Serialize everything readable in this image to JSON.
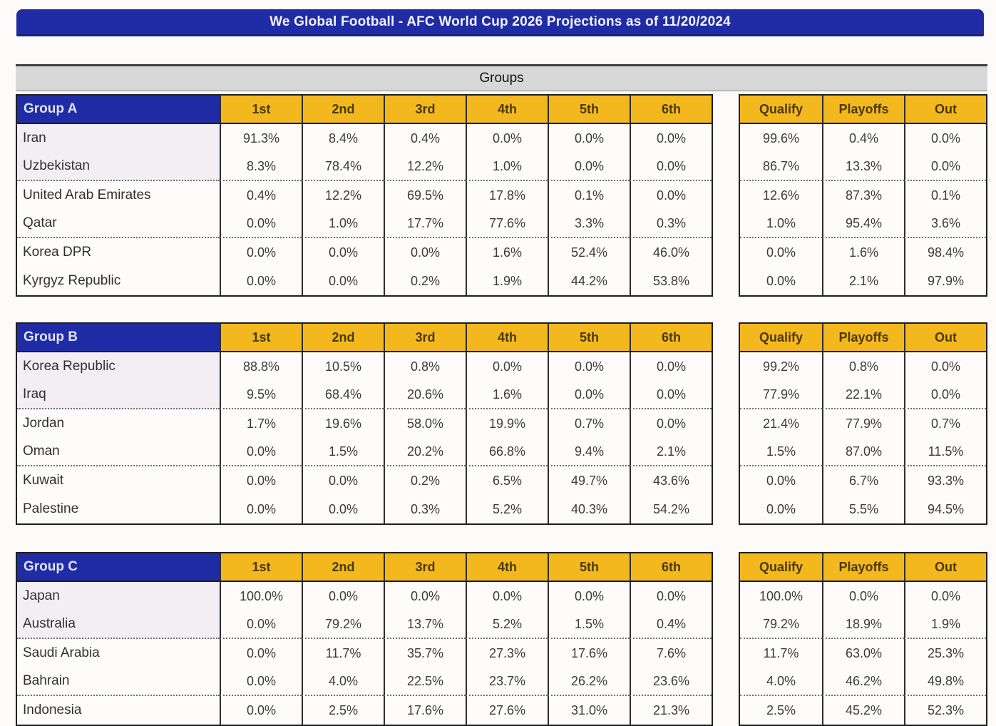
{
  "chart_data": {
    "type": "table",
    "title": "We Global Football - AFC World Cup 2026 Projections as of 11/20/2024",
    "section": "Groups",
    "position_columns": [
      "1st",
      "2nd",
      "3rd",
      "4th",
      "5th",
      "6th"
    ],
    "outcome_columns": [
      "Qualify",
      "Playoffs",
      "Out"
    ],
    "groups": [
      {
        "name": "Group A",
        "teams": [
          {
            "team": "Iran",
            "positions": [
              "91.3%",
              "8.4%",
              "0.4%",
              "0.0%",
              "0.0%",
              "0.0%"
            ],
            "outcomes": [
              "99.6%",
              "0.4%",
              "0.0%"
            ]
          },
          {
            "team": "Uzbekistan",
            "positions": [
              "8.3%",
              "78.4%",
              "12.2%",
              "1.0%",
              "0.0%",
              "0.0%"
            ],
            "outcomes": [
              "86.7%",
              "13.3%",
              "0.0%"
            ]
          },
          {
            "team": "United Arab Emirates",
            "positions": [
              "0.4%",
              "12.2%",
              "69.5%",
              "17.8%",
              "0.1%",
              "0.0%"
            ],
            "outcomes": [
              "12.6%",
              "87.3%",
              "0.1%"
            ]
          },
          {
            "team": "Qatar",
            "positions": [
              "0.0%",
              "1.0%",
              "17.7%",
              "77.6%",
              "3.3%",
              "0.3%"
            ],
            "outcomes": [
              "1.0%",
              "95.4%",
              "3.6%"
            ]
          },
          {
            "team": "Korea DPR",
            "positions": [
              "0.0%",
              "0.0%",
              "0.0%",
              "1.6%",
              "52.4%",
              "46.0%"
            ],
            "outcomes": [
              "0.0%",
              "1.6%",
              "98.4%"
            ]
          },
          {
            "team": "Kyrgyz Republic",
            "positions": [
              "0.0%",
              "0.0%",
              "0.2%",
              "1.9%",
              "44.2%",
              "53.8%"
            ],
            "outcomes": [
              "0.0%",
              "2.1%",
              "97.9%"
            ]
          }
        ]
      },
      {
        "name": "Group B",
        "teams": [
          {
            "team": "Korea Republic",
            "positions": [
              "88.8%",
              "10.5%",
              "0.8%",
              "0.0%",
              "0.0%",
              "0.0%"
            ],
            "outcomes": [
              "99.2%",
              "0.8%",
              "0.0%"
            ]
          },
          {
            "team": "Iraq",
            "positions": [
              "9.5%",
              "68.4%",
              "20.6%",
              "1.6%",
              "0.0%",
              "0.0%"
            ],
            "outcomes": [
              "77.9%",
              "22.1%",
              "0.0%"
            ]
          },
          {
            "team": "Jordan",
            "positions": [
              "1.7%",
              "19.6%",
              "58.0%",
              "19.9%",
              "0.7%",
              "0.0%"
            ],
            "outcomes": [
              "21.4%",
              "77.9%",
              "0.7%"
            ]
          },
          {
            "team": "Oman",
            "positions": [
              "0.0%",
              "1.5%",
              "20.2%",
              "66.8%",
              "9.4%",
              "2.1%"
            ],
            "outcomes": [
              "1.5%",
              "87.0%",
              "11.5%"
            ]
          },
          {
            "team": "Kuwait",
            "positions": [
              "0.0%",
              "0.0%",
              "0.2%",
              "6.5%",
              "49.7%",
              "43.6%"
            ],
            "outcomes": [
              "0.0%",
              "6.7%",
              "93.3%"
            ]
          },
          {
            "team": "Palestine",
            "positions": [
              "0.0%",
              "0.0%",
              "0.3%",
              "5.2%",
              "40.3%",
              "54.2%"
            ],
            "outcomes": [
              "0.0%",
              "5.5%",
              "94.5%"
            ]
          }
        ]
      },
      {
        "name": "Group C",
        "teams": [
          {
            "team": "Japan",
            "positions": [
              "100.0%",
              "0.0%",
              "0.0%",
              "0.0%",
              "0.0%",
              "0.0%"
            ],
            "outcomes": [
              "100.0%",
              "0.0%",
              "0.0%"
            ]
          },
          {
            "team": "Australia",
            "positions": [
              "0.0%",
              "79.2%",
              "13.7%",
              "5.2%",
              "1.5%",
              "0.4%"
            ],
            "outcomes": [
              "79.2%",
              "18.9%",
              "1.9%"
            ]
          },
          {
            "team": "Saudi Arabia",
            "positions": [
              "0.0%",
              "11.7%",
              "35.7%",
              "27.3%",
              "17.6%",
              "7.6%"
            ],
            "outcomes": [
              "11.7%",
              "63.0%",
              "25.3%"
            ]
          },
          {
            "team": "Bahrain",
            "positions": [
              "0.0%",
              "4.0%",
              "22.5%",
              "23.7%",
              "26.2%",
              "23.6%"
            ],
            "outcomes": [
              "4.0%",
              "46.2%",
              "49.8%"
            ]
          },
          {
            "team": "Indonesia",
            "positions": [
              "0.0%",
              "2.5%",
              "17.6%",
              "27.6%",
              "31.0%",
              "21.3%"
            ],
            "outcomes": [
              "2.5%",
              "45.2%",
              "52.3%"
            ]
          }
        ]
      }
    ],
    "layout": {
      "qualify_zone_rows": 2,
      "dotted_separators_after_rows": [
        2,
        4
      ]
    },
    "colors": {
      "banner_navy": "#202CA6",
      "header_gold": "#F4B81F",
      "section_gray": "#D7D7D7",
      "qualify_row_tint": "#F3EEF4"
    }
  }
}
